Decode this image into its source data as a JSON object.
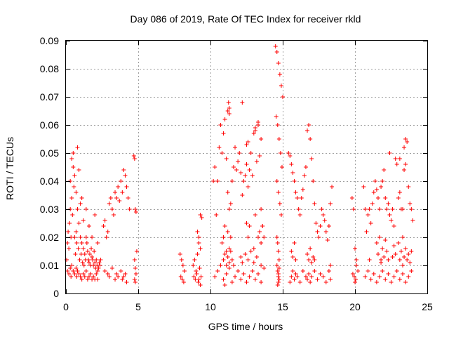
{
  "chart_data": {
    "type": "scatter",
    "title": "Day 086 of 2019, Rate Of TEC Index for receiver rkld",
    "xlabel": "GPS time / hours",
    "ylabel": "ROTI / TECUs",
    "xlim": [
      0,
      25
    ],
    "ylim": [
      0,
      0.09
    ],
    "x_ticks": [
      0,
      5,
      10,
      15,
      20,
      25
    ],
    "x_tick_labels": [
      "0",
      "5",
      "10",
      "15",
      "20",
      "25"
    ],
    "y_ticks": [
      0,
      0.01,
      0.02,
      0.03,
      0.04,
      0.05,
      0.06,
      0.07,
      0.08,
      0.09
    ],
    "y_tick_labels": [
      "0",
      "0.01",
      "0.02",
      "0.03",
      "0.04",
      "0.05",
      "0.06",
      "0.07",
      "0.08",
      "0.09"
    ],
    "grid": true,
    "marker": "plus",
    "series": [
      {
        "name": "ROTI",
        "color": "#ff0000",
        "x": [
          0.05,
          0.1,
          0.15,
          0.2,
          0.25,
          0.3,
          0.35,
          0.4,
          0.45,
          0.5,
          0.55,
          0.6,
          0.65,
          0.7,
          0.75,
          0.8,
          0.85,
          0.9,
          0.95,
          1.0,
          1.05,
          1.1,
          1.15,
          1.2,
          1.25,
          1.3,
          1.35,
          1.4,
          1.45,
          1.5,
          1.55,
          1.6,
          1.65,
          1.7,
          1.75,
          1.8,
          1.85,
          1.9,
          1.95,
          2.0,
          2.05,
          2.1,
          2.15,
          2.2,
          2.25,
          2.3,
          2.35,
          2.4,
          0.1,
          0.2,
          0.3,
          0.35,
          0.4,
          0.5,
          0.6,
          0.7,
          0.75,
          0.8,
          0.9,
          1.0,
          1.1,
          1.2,
          1.3,
          1.4,
          1.5,
          1.6,
          1.7,
          1.8,
          1.9,
          2.0,
          2.1,
          2.2,
          0.3,
          0.4,
          0.5,
          0.6,
          0.7,
          0.8,
          0.9,
          1.0,
          1.1,
          1.2,
          1.4,
          1.6,
          1.8,
          2.0,
          2.2,
          2.6,
          2.7,
          2.8,
          2.9,
          3.0,
          3.1,
          3.2,
          3.3,
          3.4,
          3.5,
          3.6,
          3.7,
          3.8,
          3.9,
          4.0,
          4.1,
          4.2,
          4.3,
          4.4,
          2.7,
          2.9,
          3.0,
          3.2,
          3.4,
          3.5,
          3.6,
          3.8,
          3.9,
          4.0,
          4.1,
          4.2,
          4.7,
          4.75,
          4.8,
          4.85,
          4.9,
          4.75,
          4.8,
          4.85,
          4.75,
          4.8,
          7.9,
          8.0,
          8.1,
          8.2,
          7.95,
          8.05,
          8.15,
          8.8,
          8.9,
          9.0,
          9.1,
          9.2,
          9.3,
          9.4,
          8.85,
          8.95,
          9.05,
          9.15,
          9.25,
          9.35,
          9.1,
          9.2,
          9.3,
          9.2,
          9.3,
          10.2,
          10.3,
          10.4,
          10.5,
          10.6,
          10.7,
          10.8,
          10.9,
          11.0,
          11.1,
          11.2,
          11.3,
          11.4,
          11.5,
          11.6,
          11.7,
          11.8,
          11.9,
          12.0,
          12.1,
          12.2,
          12.3,
          12.4,
          12.5,
          12.6,
          12.7,
          12.8,
          12.9,
          13.0,
          13.1,
          13.2,
          13.3,
          13.4,
          13.5,
          13.6,
          13.7,
          10.3,
          10.5,
          10.7,
          10.9,
          11.0,
          11.1,
          11.3,
          11.5,
          11.7,
          11.9,
          12.1,
          12.3,
          12.5,
          12.7,
          12.9,
          13.1,
          13.3,
          13.5,
          13.7,
          10.8,
          10.9,
          11.0,
          11.1,
          11.2,
          11.3,
          11.4,
          12.5,
          12.6,
          12.7,
          13.0,
          13.1,
          13.3,
          13.4,
          13.5,
          13.6,
          10.9,
          11.0,
          11.1,
          11.2,
          11.3,
          11.4,
          11.5,
          11.6,
          12.1,
          12.2,
          12.4,
          12.6,
          12.8,
          13.0,
          13.2,
          13.5,
          11.2,
          11.25,
          11.3,
          11.3,
          12.2,
          12.5,
          12.6,
          13.1,
          13.3,
          13.5,
          14.5,
          14.6,
          14.7,
          14.8,
          14.9,
          15.0,
          14.55,
          14.65,
          14.75,
          14.85,
          14.95,
          14.6,
          14.7,
          14.8,
          14.9,
          14.6,
          14.65,
          14.7,
          14.75,
          14.6,
          14.65,
          14.7,
          14.75,
          14.7,
          14.75,
          14.7,
          14.65,
          15.4,
          15.5,
          15.6,
          15.7,
          15.8,
          15.9,
          16.0,
          16.1,
          16.2,
          16.3,
          16.4,
          16.5,
          16.6,
          16.7,
          16.8,
          16.9,
          17.0,
          17.1,
          17.2,
          17.3,
          17.4,
          17.5,
          17.6,
          17.7,
          17.8,
          17.9,
          18.0,
          18.1,
          18.2,
          18.3,
          18.4,
          15.5,
          15.6,
          15.7,
          15.8,
          15.9,
          16.0,
          16.2,
          16.4,
          16.6,
          16.7,
          16.8,
          16.9,
          17.0,
          17.2,
          17.4,
          17.6,
          17.8,
          18.0,
          18.2,
          18.3,
          15.6,
          15.7,
          15.8,
          15.9,
          16.7,
          16.8,
          16.9,
          17.0,
          17.1,
          17.2,
          18.3,
          19.8,
          19.9,
          20.0,
          20.1,
          20.2,
          19.85,
          19.95,
          20.05,
          20.0,
          20.6,
          20.7,
          20.8,
          20.9,
          21.0,
          21.1,
          21.2,
          21.3,
          21.4,
          21.5,
          21.6,
          21.7,
          21.8,
          21.9,
          22.0,
          22.1,
          22.2,
          22.3,
          22.4,
          22.5,
          22.6,
          22.7,
          22.8,
          22.9,
          23.0,
          23.1,
          23.2,
          23.3,
          23.4,
          23.5,
          23.6,
          23.7,
          23.8,
          23.9,
          24.0,
          20.7,
          20.9,
          21.1,
          21.3,
          21.5,
          21.7,
          21.9,
          22.1,
          22.3,
          22.5,
          22.7,
          22.9,
          23.1,
          23.3,
          23.5,
          23.7,
          23.9,
          21.5,
          21.6,
          21.7,
          21.8,
          21.9,
          22.0,
          22.1,
          22.2,
          22.3,
          22.7,
          22.8,
          23.0,
          23.1,
          23.2,
          23.3,
          23.4,
          23.5,
          23.6,
          23.7,
          23.8,
          23.9,
          20.1,
          21.0,
          21.8,
          22.6,
          23.3,
          23.4,
          23.5,
          23.1,
          22.4
        ],
        "y": [
          0.012,
          0.018,
          0.022,
          0.016,
          0.025,
          0.03,
          0.02,
          0.034,
          0.028,
          0.045,
          0.038,
          0.02,
          0.014,
          0.022,
          0.018,
          0.03,
          0.016,
          0.025,
          0.012,
          0.02,
          0.014,
          0.018,
          0.011,
          0.016,
          0.01,
          0.014,
          0.012,
          0.02,
          0.018,
          0.015,
          0.012,
          0.011,
          0.014,
          0.01,
          0.016,
          0.013,
          0.012,
          0.01,
          0.015,
          0.011,
          0.009,
          0.012,
          0.01,
          0.008,
          0.009,
          0.011,
          0.01,
          0.012,
          0.008,
          0.007,
          0.009,
          0.006,
          0.01,
          0.008,
          0.007,
          0.009,
          0.006,
          0.008,
          0.007,
          0.006,
          0.005,
          0.007,
          0.006,
          0.008,
          0.005,
          0.006,
          0.007,
          0.005,
          0.006,
          0.005,
          0.007,
          0.005,
          0.04,
          0.048,
          0.05,
          0.042,
          0.036,
          0.052,
          0.044,
          0.032,
          0.034,
          0.026,
          0.03,
          0.024,
          0.02,
          0.028,
          0.018,
          0.024,
          0.026,
          0.02,
          0.022,
          0.032,
          0.034,
          0.03,
          0.028,
          0.036,
          0.034,
          0.038,
          0.033,
          0.04,
          0.036,
          0.044,
          0.042,
          0.038,
          0.034,
          0.03,
          0.008,
          0.007,
          0.006,
          0.009,
          0.005,
          0.007,
          0.006,
          0.008,
          0.005,
          0.006,
          0.007,
          0.004,
          0.049,
          0.048,
          0.03,
          0.029,
          0.015,
          0.012,
          0.009,
          0.007,
          0.005,
          0.004,
          0.014,
          0.012,
          0.01,
          0.008,
          0.006,
          0.005,
          0.004,
          0.01,
          0.012,
          0.008,
          0.014,
          0.02,
          0.028,
          0.027,
          0.006,
          0.005,
          0.007,
          0.004,
          0.009,
          0.006,
          0.022,
          0.018,
          0.016,
          0.005,
          0.003,
          0.04,
          0.045,
          0.028,
          0.04,
          0.052,
          0.06,
          0.05,
          0.057,
          0.062,
          0.048,
          0.036,
          0.03,
          0.032,
          0.04,
          0.045,
          0.052,
          0.044,
          0.047,
          0.05,
          0.043,
          0.035,
          0.04,
          0.042,
          0.046,
          0.038,
          0.044,
          0.05,
          0.042,
          0.057,
          0.058,
          0.047,
          0.061,
          0.049,
          0.03,
          0.024,
          0.02,
          0.006,
          0.008,
          0.01,
          0.005,
          0.003,
          0.007,
          0.009,
          0.004,
          0.006,
          0.008,
          0.005,
          0.007,
          0.004,
          0.006,
          0.008,
          0.005,
          0.007,
          0.004,
          0.009,
          0.018,
          0.02,
          0.024,
          0.015,
          0.022,
          0.016,
          0.02,
          0.025,
          0.02,
          0.024,
          0.016,
          0.028,
          0.02,
          0.022,
          0.018,
          0.024,
          0.012,
          0.014,
          0.01,
          0.013,
          0.011,
          0.015,
          0.012,
          0.01,
          0.013,
          0.011,
          0.014,
          0.012,
          0.015,
          0.011,
          0.013,
          0.01,
          0.065,
          0.068,
          0.066,
          0.064,
          0.068,
          0.053,
          0.054,
          0.059,
          0.06,
          0.055,
          0.088,
          0.086,
          0.082,
          0.078,
          0.074,
          0.07,
          0.063,
          0.06,
          0.055,
          0.05,
          0.045,
          0.04,
          0.036,
          0.032,
          0.028,
          0.02,
          0.018,
          0.015,
          0.012,
          0.01,
          0.008,
          0.006,
          0.005,
          0.004,
          0.009,
          0.007,
          0.003,
          0.05,
          0.049,
          0.046,
          0.043,
          0.04,
          0.036,
          0.034,
          0.03,
          0.028,
          0.034,
          0.037,
          0.042,
          0.045,
          0.058,
          0.06,
          0.055,
          0.048,
          0.04,
          0.032,
          0.025,
          0.022,
          0.02,
          0.024,
          0.03,
          0.028,
          0.026,
          0.022,
          0.019,
          0.024,
          0.032,
          0.038,
          0.004,
          0.006,
          0.008,
          0.005,
          0.007,
          0.006,
          0.004,
          0.008,
          0.006,
          0.005,
          0.007,
          0.004,
          0.006,
          0.008,
          0.005,
          0.007,
          0.006,
          0.004,
          0.008,
          0.005,
          0.015,
          0.013,
          0.018,
          0.012,
          0.014,
          0.012,
          0.016,
          0.011,
          0.013,
          0.012,
          0.01,
          0.034,
          0.03,
          0.016,
          0.012,
          0.008,
          0.007,
          0.006,
          0.005,
          0.004,
          0.038,
          0.03,
          0.022,
          0.028,
          0.03,
          0.025,
          0.032,
          0.036,
          0.04,
          0.037,
          0.034,
          0.03,
          0.038,
          0.04,
          0.044,
          0.034,
          0.03,
          0.032,
          0.028,
          0.026,
          0.03,
          0.024,
          0.048,
          0.046,
          0.034,
          0.036,
          0.03,
          0.03,
          0.044,
          0.046,
          0.054,
          0.038,
          0.032,
          0.03,
          0.026,
          0.006,
          0.008,
          0.005,
          0.007,
          0.004,
          0.006,
          0.008,
          0.005,
          0.007,
          0.004,
          0.006,
          0.008,
          0.005,
          0.007,
          0.004,
          0.006,
          0.008,
          0.018,
          0.014,
          0.02,
          0.012,
          0.016,
          0.013,
          0.019,
          0.015,
          0.012,
          0.017,
          0.014,
          0.018,
          0.012,
          0.015,
          0.02,
          0.013,
          0.016,
          0.012,
          0.014,
          0.011,
          0.015,
          0.01,
          0.012,
          0.011,
          0.013,
          0.01,
          0.052,
          0.055,
          0.048,
          0.05
        ]
      }
    ]
  }
}
